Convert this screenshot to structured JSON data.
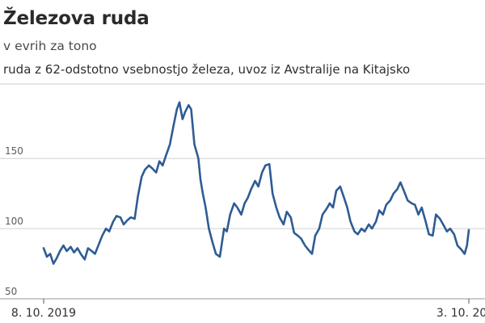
{
  "chart_data": {
    "type": "line",
    "title": "Železova ruda",
    "subtitle": "v evrih za tono",
    "note": "ruda z 62-odstotno vsebnostjo železa, uvoz iz Avstralije na Kitajsko",
    "xlabel": "",
    "ylabel": "",
    "ylim": [
      50,
      195
    ],
    "yticks": [
      50,
      100,
      150
    ],
    "xticks": [
      "8. 10. 2019",
      "3. 10. 2024"
    ],
    "grid": "horizontal",
    "legend": "none",
    "color": "#2e5c94",
    "series": [
      {
        "x": [
          "2019-10-08",
          "2019-10-22",
          "2019-11-05",
          "2019-11-19",
          "2019-12-03",
          "2019-12-17",
          "2020-01-01",
          "2020-01-15",
          "2020-02-01",
          "2020-02-15",
          "2020-03-01",
          "2020-03-15",
          "2020-04-01",
          "2020-04-15",
          "2020-05-01",
          "2020-05-15",
          "2020-06-01",
          "2020-06-15",
          "2020-07-01",
          "2020-07-15",
          "2020-08-01",
          "2020-08-15",
          "2020-09-01",
          "2020-09-15",
          "2020-10-01",
          "2020-10-15",
          "2020-11-01",
          "2020-11-15",
          "2020-12-01",
          "2020-12-15",
          "2021-01-01",
          "2021-01-15",
          "2021-02-01",
          "2021-02-15",
          "2021-03-01",
          "2021-03-15",
          "2021-04-01",
          "2021-04-15",
          "2021-05-01",
          "2021-05-12",
          "2021-05-25",
          "2021-06-05",
          "2021-06-20",
          "2021-07-01",
          "2021-07-15",
          "2021-08-01",
          "2021-08-10",
          "2021-08-20",
          "2021-09-01",
          "2021-09-15",
          "2021-10-01",
          "2021-10-15",
          "2021-11-01",
          "2021-11-19",
          "2021-12-01",
          "2021-12-15",
          "2022-01-01",
          "2022-01-15",
          "2022-02-01",
          "2022-02-15",
          "2022-03-01",
          "2022-03-15",
          "2022-04-01",
          "2022-04-15",
          "2022-05-01",
          "2022-05-15",
          "2022-06-01",
          "2022-06-15",
          "2022-07-01",
          "2022-07-15",
          "2022-08-01",
          "2022-08-15",
          "2022-09-01",
          "2022-09-15",
          "2022-10-01",
          "2022-10-15",
          "2022-11-01",
          "2022-11-15",
          "2022-12-01",
          "2022-12-15",
          "2023-01-01",
          "2023-01-15",
          "2023-02-01",
          "2023-02-15",
          "2023-03-01",
          "2023-03-15",
          "2023-04-01",
          "2023-04-15",
          "2023-05-01",
          "2023-05-15",
          "2023-06-01",
          "2023-06-15",
          "2023-07-01",
          "2023-07-15",
          "2023-08-01",
          "2023-08-15",
          "2023-09-01",
          "2023-09-15",
          "2023-10-01",
          "2023-10-15",
          "2023-11-01",
          "2023-11-15",
          "2023-12-01",
          "2023-12-15",
          "2024-01-01",
          "2024-01-15",
          "2024-02-01",
          "2024-02-15",
          "2024-03-01",
          "2024-03-15",
          "2024-04-01",
          "2024-04-15",
          "2024-05-01",
          "2024-05-15",
          "2024-06-01",
          "2024-06-15",
          "2024-07-01",
          "2024-07-15",
          "2024-08-01",
          "2024-08-15",
          "2024-09-01",
          "2024-09-15",
          "2024-09-25",
          "2024-10-03"
        ],
        "y": [
          86,
          80,
          82,
          75,
          79,
          84,
          88,
          84,
          87,
          83,
          86,
          82,
          78,
          86,
          84,
          82,
          89,
          95,
          100,
          98,
          105,
          109,
          108,
          103,
          106,
          108,
          107,
          123,
          137,
          142,
          145,
          143,
          140,
          148,
          145,
          152,
          160,
          172,
          185,
          190,
          178,
          183,
          188,
          185,
          160,
          150,
          135,
          125,
          115,
          100,
          90,
          82,
          80,
          100,
          98,
          110,
          118,
          115,
          110,
          118,
          122,
          128,
          134,
          130,
          140,
          145,
          146,
          125,
          115,
          108,
          103,
          112,
          108,
          97,
          95,
          93,
          88,
          85,
          82,
          95,
          100,
          110,
          114,
          118,
          115,
          127,
          130,
          123,
          115,
          105,
          98,
          96,
          100,
          98,
          103,
          100,
          105,
          113,
          110,
          117,
          120,
          125,
          128,
          133,
          126,
          120,
          118,
          117,
          110,
          115,
          105,
          96,
          95,
          110,
          107,
          103,
          98,
          100,
          96,
          88,
          85,
          82,
          88,
          99
        ]
      }
    ]
  }
}
